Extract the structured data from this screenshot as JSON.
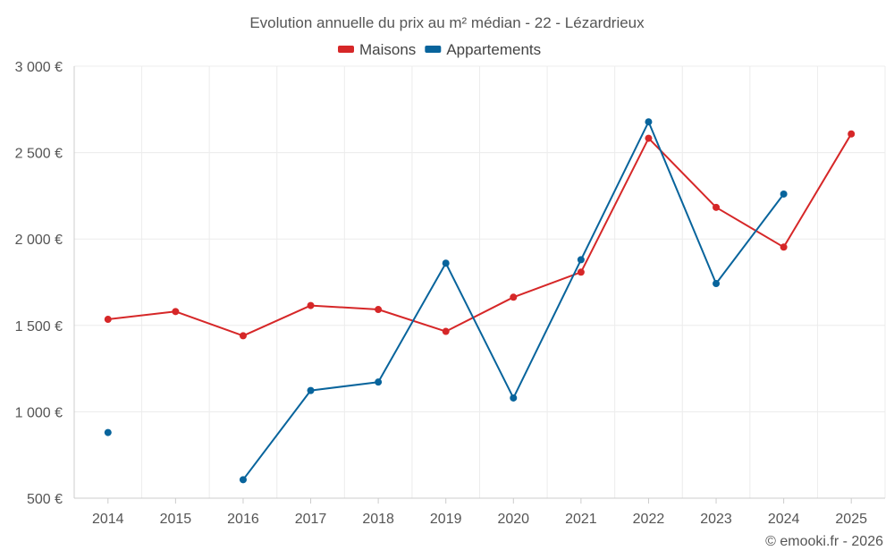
{
  "chart_data": {
    "type": "line",
    "title": "Evolution annuelle du prix au m² médian - 22 - Lézardrieux",
    "categories": [
      "2014",
      "2015",
      "2016",
      "2017",
      "2018",
      "2019",
      "2020",
      "2021",
      "2022",
      "2023",
      "2024",
      "2025"
    ],
    "series": [
      {
        "name": "Maisons",
        "color": "#d62728",
        "values": [
          1535,
          1580,
          1440,
          1615,
          1592,
          1465,
          1663,
          1808,
          2583,
          2183,
          1953,
          2608
        ]
      },
      {
        "name": "Appartements",
        "color": "#08649c",
        "values": [
          880,
          null,
          607,
          1123,
          1172,
          1860,
          1080,
          1880,
          2678,
          1742,
          2260,
          null
        ]
      }
    ],
    "ylim": [
      500,
      3000
    ],
    "yticks": [
      500,
      1000,
      1500,
      2000,
      2500,
      3000
    ],
    "ytick_labels": [
      "500 €",
      "1 000 €",
      "1 500 €",
      "2 000 €",
      "2 500 €",
      "3 000 €"
    ],
    "grid": true,
    "legend_position": "top-center",
    "xlabel": "",
    "ylabel": ""
  },
  "credit": "© emooki.fr - 2026"
}
